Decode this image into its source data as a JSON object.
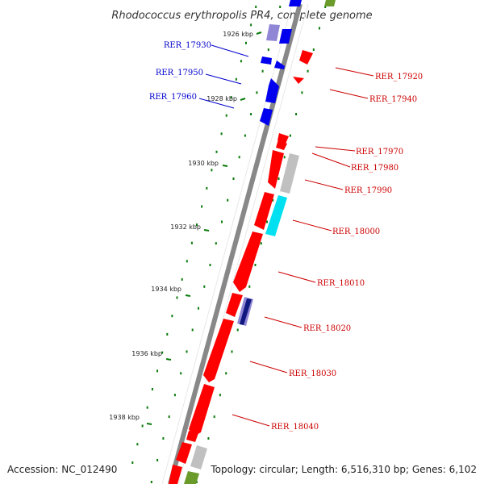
{
  "title": "Rhodococcus erythropolis PR4, complete genome",
  "footer": {
    "accession": "Accession: NC_012490",
    "topology": "Topology: circular; Length: 6,516,310 bp; Genes: 6,102"
  },
  "colors": {
    "red": "#ff0000",
    "blue": "#0000ee",
    "purple": "#8f86d6",
    "gray": "#c0c0c0",
    "cyan": "#00e0f0",
    "navy": "#101880",
    "olive": "#6a9a2a",
    "backbone": "#888888",
    "tick": "#0a7a0a",
    "label_red": "#cc0000",
    "label_blue": "#0000cc"
  },
  "kbp_ticks": [
    "1926 kbp",
    "1928 kbp",
    "1930 kbp",
    "1932 kbp",
    "1934 kbp",
    "1936 kbp",
    "1938 kbp"
  ],
  "gene_labels": [
    {
      "text": "RER_17930",
      "color": "blue"
    },
    {
      "text": "RER_17950",
      "color": "blue"
    },
    {
      "text": "RER_17960",
      "color": "blue"
    },
    {
      "text": "RER_17920",
      "color": "red"
    },
    {
      "text": "RER_17940",
      "color": "red"
    },
    {
      "text": "RER_17970",
      "color": "red"
    },
    {
      "text": "RER_17980",
      "color": "red"
    },
    {
      "text": "RER_17990",
      "color": "red"
    },
    {
      "text": "RER_18000",
      "color": "red"
    },
    {
      "text": "RER_18010",
      "color": "red"
    },
    {
      "text": "RER_18020",
      "color": "red"
    },
    {
      "text": "RER_18030",
      "color": "red"
    },
    {
      "text": "RER_18040",
      "color": "red"
    }
  ]
}
